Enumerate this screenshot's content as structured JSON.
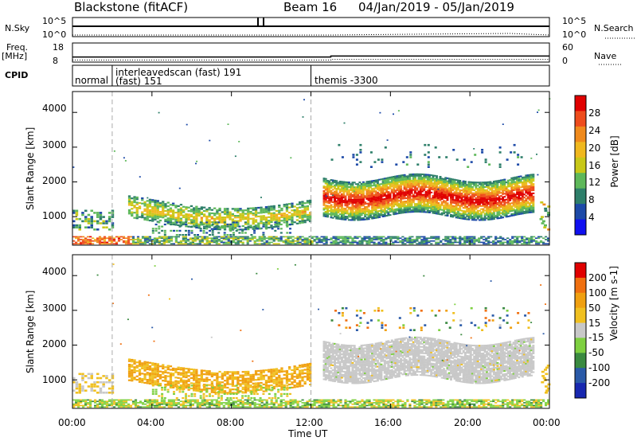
{
  "header": {
    "station": "Blackstone (fitACF)",
    "beam": "Beam 16",
    "date_range": "04/Jan/2019 - 05/Jan/2019"
  },
  "top_panels": {
    "nsky_label": "N.Sky",
    "nsearch_label": "N.Search",
    "freq_label": "Freq.",
    "freq_unit": "[MHz]",
    "nave_label": "Nave",
    "cpid_label": "CPID",
    "left_ticks": [
      "10^5",
      "10^0"
    ],
    "right_ticks": [
      "10^5",
      "10^0"
    ],
    "freq_ticks": [
      "18",
      "8"
    ],
    "nave_ticks": [
      "60",
      "0"
    ],
    "nave_level_before": 2,
    "nave_level_after": 4,
    "freq_level_before": 10.2,
    "freq_level_after": 10.8
  },
  "cpid_segments": [
    {
      "label": "normal",
      "start_hour": 0.0
    },
    {
      "label": "interleavedscan (fast) 191",
      "sublabel": "(fast) 151",
      "start_hour": 2.0
    },
    {
      "label": "themis -3300",
      "start_hour": 12.0
    }
  ],
  "chart_data": [
    {
      "type": "heatmap",
      "panel": "power",
      "ylabel": "Slant Range [km]",
      "xlabel": "",
      "x_range_hours": [
        0,
        24
      ],
      "ylim": [
        180,
        4600
      ],
      "yticks": [
        1000,
        2000,
        3000,
        4000
      ],
      "colorbar_label": "Power [dB]",
      "colorbar_ticks": [
        "4",
        "8",
        "12",
        "16",
        "20",
        "24",
        "28"
      ],
      "colorbar_colors": [
        "#1010f0",
        "#1d4aa8",
        "#2e7f6a",
        "#5eb85a",
        "#c8c818",
        "#f0b81e",
        "#f08a1c",
        "#ee4c1c",
        "#e00000"
      ],
      "colorbar_range": [
        0,
        32
      ]
    },
    {
      "type": "heatmap",
      "panel": "velocity",
      "ylabel": "Slant Range [km]",
      "xlabel": "Time UT",
      "x_range_hours": [
        0,
        24
      ],
      "ylim": [
        180,
        4600
      ],
      "yticks": [
        1000,
        2000,
        3000,
        4000
      ],
      "xticks": [
        "00:00",
        "04:00",
        "08:00",
        "12:00",
        "16:00",
        "20:00",
        "00:00"
      ],
      "colorbar_label": "Velocity [m s-1]",
      "colorbar_ticks": [
        "200",
        "100",
        "50",
        "15",
        "-15",
        "-50",
        "-100",
        "-200"
      ],
      "colorbar_colors": [
        "#1828b0",
        "#2a5aa8",
        "#3a8a40",
        "#7ed040",
        "#c8c8c8",
        "#f0c020",
        "#f0a010",
        "#f07010",
        "#e00000"
      ]
    }
  ],
  "colors": {
    "power_low": "#1d4aa8",
    "power_mid": "#5eb85a",
    "power_high": "#e00000",
    "velocity_ground": "#c8c8c8",
    "velocity_neg": "#f0b020",
    "velocity_pos": "#7ed040"
  }
}
